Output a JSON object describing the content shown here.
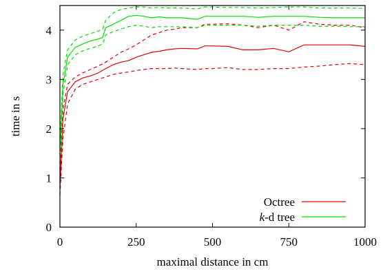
{
  "chart_data": {
    "type": "line",
    "title": "",
    "xlabel": "maximal distance in cm",
    "ylabel": "time in s",
    "xlim": [
      0,
      1000
    ],
    "ylim": [
      0,
      4.5
    ],
    "xticks": [
      0,
      250,
      500,
      750,
      1000
    ],
    "yticks": [
      0,
      1,
      2,
      3,
      4
    ],
    "grid": false,
    "legend_position": "bottom-right",
    "legend": [
      {
        "label_prefix": "",
        "label_italic": "",
        "label_rest": "Octree",
        "color": "#e00000"
      },
      {
        "label_prefix": "",
        "label_italic": "k",
        "label_rest": "-d tree",
        "color": "#00dd00"
      }
    ],
    "series": [
      {
        "name": "Octree",
        "color": "#e00000",
        "style": "solid",
        "x": [
          0,
          10,
          25,
          50,
          75,
          100,
          125,
          150,
          175,
          200,
          225,
          250,
          275,
          300,
          325,
          350,
          375,
          400,
          450,
          475,
          500,
          550,
          600,
          650,
          700,
          750,
          800,
          850,
          900,
          950,
          1000
        ],
        "y": [
          0.8,
          2.2,
          2.75,
          2.95,
          3.03,
          3.07,
          3.13,
          3.22,
          3.3,
          3.35,
          3.38,
          3.45,
          3.5,
          3.55,
          3.57,
          3.6,
          3.62,
          3.63,
          3.62,
          3.68,
          3.68,
          3.67,
          3.6,
          3.6,
          3.63,
          3.56,
          3.7,
          3.7,
          3.7,
          3.7,
          3.67
        ]
      },
      {
        "name": "Octree upper",
        "color": "#e00000",
        "style": "dashed",
        "x": [
          0,
          10,
          25,
          50,
          75,
          100,
          125,
          150,
          175,
          200,
          225,
          250,
          275,
          300,
          325,
          350,
          375,
          400,
          450,
          475,
          500,
          550,
          600,
          650,
          700,
          750,
          800,
          850,
          900,
          950,
          1000
        ],
        "y": [
          0.9,
          2.4,
          2.9,
          3.05,
          3.13,
          3.2,
          3.27,
          3.35,
          3.45,
          3.55,
          3.62,
          3.7,
          3.8,
          3.9,
          3.95,
          4.0,
          4.02,
          4.05,
          4.05,
          4.12,
          4.12,
          4.13,
          4.1,
          4.05,
          4.1,
          4.0,
          4.17,
          4.12,
          4.1,
          4.1,
          4.05
        ]
      },
      {
        "name": "Octree lower",
        "color": "#e00000",
        "style": "dashed",
        "x": [
          0,
          10,
          25,
          50,
          75,
          100,
          125,
          150,
          175,
          200,
          225,
          250,
          275,
          300,
          325,
          350,
          375,
          400,
          450,
          475,
          500,
          550,
          600,
          650,
          700,
          750,
          800,
          850,
          900,
          950,
          1000
        ],
        "y": [
          0.65,
          1.8,
          2.5,
          2.8,
          2.9,
          2.95,
          3.0,
          3.05,
          3.1,
          3.13,
          3.15,
          3.18,
          3.2,
          3.22,
          3.22,
          3.22,
          3.23,
          3.22,
          3.2,
          3.22,
          3.22,
          3.24,
          3.2,
          3.2,
          3.22,
          3.22,
          3.25,
          3.27,
          3.3,
          3.32,
          3.3
        ]
      },
      {
        "name": "k-d tree",
        "color": "#00dd00",
        "style": "solid",
        "x": [
          0,
          10,
          25,
          50,
          75,
          100,
          125,
          140,
          150,
          175,
          200,
          225,
          250,
          275,
          300,
          325,
          350,
          400,
          450,
          475,
          500,
          550,
          600,
          650,
          700,
          750,
          800,
          850,
          900,
          950,
          1000
        ],
        "y": [
          1.5,
          2.9,
          3.45,
          3.65,
          3.72,
          3.78,
          3.82,
          3.85,
          4.05,
          4.12,
          4.2,
          4.28,
          4.3,
          4.28,
          4.25,
          4.27,
          4.25,
          4.25,
          4.22,
          4.28,
          4.28,
          4.28,
          4.28,
          4.26,
          4.28,
          4.28,
          4.28,
          4.26,
          4.25,
          4.25,
          4.25
        ]
      },
      {
        "name": "k-d tree upper",
        "color": "#00dd00",
        "style": "dashed",
        "x": [
          0,
          10,
          25,
          50,
          75,
          100,
          125,
          140,
          150,
          175,
          200,
          225,
          250,
          275,
          300,
          325,
          350,
          400,
          450,
          475,
          500,
          550,
          600,
          650,
          700,
          750,
          800,
          850,
          900,
          950,
          1000
        ],
        "y": [
          1.7,
          3.1,
          3.6,
          3.8,
          3.88,
          3.93,
          3.98,
          4.02,
          4.2,
          4.35,
          4.42,
          4.45,
          4.47,
          4.47,
          4.45,
          4.46,
          4.45,
          4.45,
          4.43,
          4.47,
          4.47,
          4.46,
          4.46,
          4.45,
          4.46,
          4.47,
          4.47,
          4.45,
          4.45,
          4.45,
          4.44
        ]
      },
      {
        "name": "k-d tree lower",
        "color": "#00dd00",
        "style": "dashed",
        "x": [
          0,
          10,
          25,
          50,
          75,
          100,
          125,
          140,
          150,
          175,
          200,
          225,
          250,
          275,
          300,
          325,
          350,
          400,
          450,
          475,
          500,
          550,
          600,
          650,
          700,
          750,
          800,
          850,
          900,
          950,
          1000
        ],
        "y": [
          1.3,
          2.7,
          3.3,
          3.5,
          3.58,
          3.63,
          3.68,
          3.72,
          3.9,
          3.97,
          4.02,
          4.07,
          4.1,
          4.08,
          4.05,
          4.07,
          4.07,
          4.07,
          4.05,
          4.1,
          4.1,
          4.1,
          4.1,
          4.08,
          4.1,
          4.1,
          4.1,
          4.08,
          4.08,
          4.07,
          4.07
        ]
      }
    ]
  }
}
